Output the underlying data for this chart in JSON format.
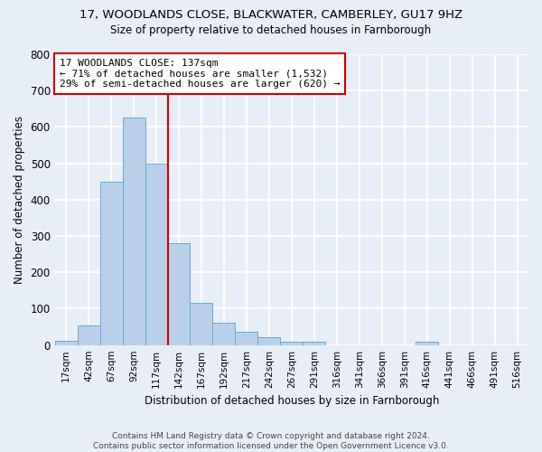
{
  "title_line1": "17, WOODLANDS CLOSE, BLACKWATER, CAMBERLEY, GU17 9HZ",
  "title_line2": "Size of property relative to detached houses in Farnborough",
  "xlabel": "Distribution of detached houses by size in Farnborough",
  "ylabel": "Number of detached properties",
  "footer_line1": "Contains HM Land Registry data © Crown copyright and database right 2024.",
  "footer_line2": "Contains public sector information licensed under the Open Government Licence v3.0.",
  "bar_labels": [
    "17sqm",
    "42sqm",
    "67sqm",
    "92sqm",
    "117sqm",
    "142sqm",
    "167sqm",
    "192sqm",
    "217sqm",
    "242sqm",
    "267sqm",
    "291sqm",
    "316sqm",
    "341sqm",
    "366sqm",
    "391sqm",
    "416sqm",
    "441sqm",
    "466sqm",
    "491sqm",
    "516sqm"
  ],
  "bar_values": [
    12,
    55,
    450,
    625,
    500,
    280,
    115,
    62,
    37,
    22,
    10,
    8,
    0,
    0,
    0,
    0,
    10,
    0,
    0,
    0,
    0
  ],
  "bar_color": "#b8d0ea",
  "bar_edge_color": "#6aaad4",
  "property_line_label": "17 WOODLANDS CLOSE: 137sqm",
  "annotation_line2": "← 71% of detached houses are smaller (1,532)",
  "annotation_line3": "29% of semi-detached houses are larger (620) →",
  "vline_color": "#cc0000",
  "vline_bar_index": 5,
  "ylim": [
    0,
    800
  ],
  "yticks": [
    0,
    100,
    200,
    300,
    400,
    500,
    600,
    700,
    800
  ],
  "background_color": "#e8eef7",
  "grid_color": "white"
}
